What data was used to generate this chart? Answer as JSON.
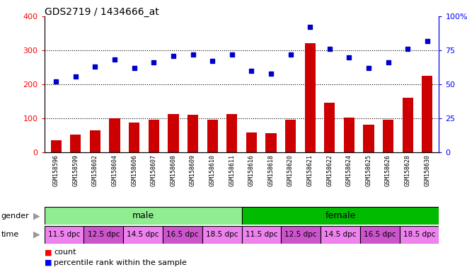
{
  "title": "GDS2719 / 1434666_at",
  "samples": [
    "GSM158596",
    "GSM158599",
    "GSM158602",
    "GSM158604",
    "GSM158606",
    "GSM158607",
    "GSM158608",
    "GSM158609",
    "GSM158610",
    "GSM158611",
    "GSM158616",
    "GSM158618",
    "GSM158620",
    "GSM158621",
    "GSM158622",
    "GSM158624",
    "GSM158625",
    "GSM158626",
    "GSM158628",
    "GSM158630"
  ],
  "counts": [
    35,
    52,
    65,
    100,
    88,
    95,
    112,
    110,
    95,
    112,
    58,
    56,
    95,
    320,
    145,
    102,
    82,
    95,
    160,
    225
  ],
  "percentiles": [
    52,
    56,
    63,
    68,
    62,
    66,
    71,
    72,
    67,
    72,
    60,
    58,
    72,
    92,
    76,
    70,
    62,
    66,
    76,
    82
  ],
  "bar_color": "#CC0000",
  "dot_color": "#0000CC",
  "left_ylim": [
    0,
    400
  ],
  "right_ylim": [
    0,
    100
  ],
  "left_yticks": [
    0,
    100,
    200,
    300,
    400
  ],
  "right_yticks": [
    0,
    25,
    50,
    75,
    100
  ],
  "right_yticklabels": [
    "0",
    "25",
    "50",
    "75",
    "100%"
  ],
  "background_color": "#ffffff",
  "male_color": "#90EE90",
  "female_color": "#00BB00",
  "time_colors": [
    "#EE82EE",
    "#CC55CC",
    "#EE82EE",
    "#CC55CC",
    "#EE82EE",
    "#EE82EE",
    "#CC55CC",
    "#EE82EE",
    "#CC55CC",
    "#EE82EE"
  ],
  "time_labels": [
    "11.5 dpc",
    "12.5 dpc",
    "14.5 dpc",
    "16.5 dpc",
    "18.5 dpc",
    "11.5 dpc",
    "12.5 dpc",
    "14.5 dpc",
    "16.5 dpc",
    "18.5 dpc"
  ],
  "time_sizes": [
    2,
    2,
    2,
    2,
    2,
    2,
    2,
    2,
    2,
    2
  ],
  "xticklabel_bg": "#D3D3D3"
}
